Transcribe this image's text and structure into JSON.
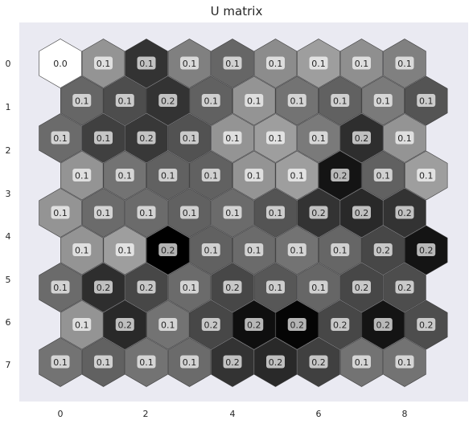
{
  "chart_data": {
    "type": "heatmap",
    "subtype": "hexagonal-grid",
    "title": "U matrix",
    "background_color": "#eaeaf2",
    "colormap": "gray",
    "grid": false,
    "x_ticks": [
      "0",
      "2",
      "4",
      "6",
      "8"
    ],
    "y_ticks": [
      "0",
      "1",
      "2",
      "3",
      "4",
      "5",
      "6",
      "7"
    ],
    "rows": [
      {
        "labels": [
          "0.0",
          "0.1",
          "0.1",
          "0.1",
          "0.1",
          "0.1",
          "0.1",
          "0.1",
          "0.1"
        ],
        "shades": [
          1.0,
          0.58,
          0.2,
          0.5,
          0.4,
          0.55,
          0.62,
          0.56,
          0.5
        ]
      },
      {
        "labels": [
          "0.1",
          "0.1",
          "0.2",
          "0.1",
          "0.1",
          "0.1",
          "0.1",
          "0.1",
          "0.1"
        ],
        "shades": [
          0.4,
          0.3,
          0.2,
          0.38,
          0.58,
          0.45,
          0.38,
          0.48,
          0.33
        ]
      },
      {
        "labels": [
          "0.1",
          "0.1",
          "0.2",
          "0.1",
          "0.1",
          "0.1",
          "0.1",
          "0.2",
          "0.1"
        ],
        "shades": [
          0.42,
          0.25,
          0.22,
          0.32,
          0.58,
          0.62,
          0.48,
          0.18,
          0.58
        ]
      },
      {
        "labels": [
          "0.1",
          "0.1",
          "0.1",
          "0.1",
          "0.1",
          "0.1",
          "0.2",
          "0.1",
          "0.1"
        ],
        "shades": [
          0.58,
          0.45,
          0.38,
          0.38,
          0.58,
          0.62,
          0.08,
          0.38,
          0.62
        ]
      },
      {
        "labels": [
          "0.1",
          "0.1",
          "0.1",
          "0.1",
          "0.1",
          "0.1",
          "0.2",
          "0.2",
          "0.2"
        ],
        "shades": [
          0.58,
          0.42,
          0.42,
          0.38,
          0.42,
          0.33,
          0.2,
          0.16,
          0.2
        ]
      },
      {
        "labels": [
          "0.1",
          "0.1",
          "0.2",
          "0.1",
          "0.1",
          "0.1",
          "0.1",
          "0.2",
          "0.2"
        ],
        "shades": [
          0.58,
          0.62,
          0.0,
          0.38,
          0.42,
          0.45,
          0.4,
          0.28,
          0.08
        ]
      },
      {
        "labels": [
          "0.1",
          "0.2",
          "0.2",
          "0.1",
          "0.2",
          "0.1",
          "0.1",
          "0.2",
          "0.2"
        ],
        "shades": [
          0.42,
          0.18,
          0.28,
          0.42,
          0.28,
          0.34,
          0.4,
          0.28,
          0.3
        ]
      },
      {
        "labels": [
          "0.1",
          "0.2",
          "0.1",
          "0.2",
          "0.2",
          "0.2",
          "0.2",
          "0.2",
          "0.2"
        ],
        "shades": [
          0.58,
          0.16,
          0.45,
          0.28,
          0.06,
          0.02,
          0.28,
          0.08,
          0.3
        ]
      },
      {
        "labels": [
          "0.1",
          "0.1",
          "0.1",
          "0.1",
          "0.2",
          "0.2",
          "0.2",
          "0.1",
          "0.1"
        ],
        "shades": [
          0.45,
          0.38,
          0.45,
          0.42,
          0.2,
          0.16,
          0.25,
          0.45,
          0.45
        ]
      }
    ]
  }
}
